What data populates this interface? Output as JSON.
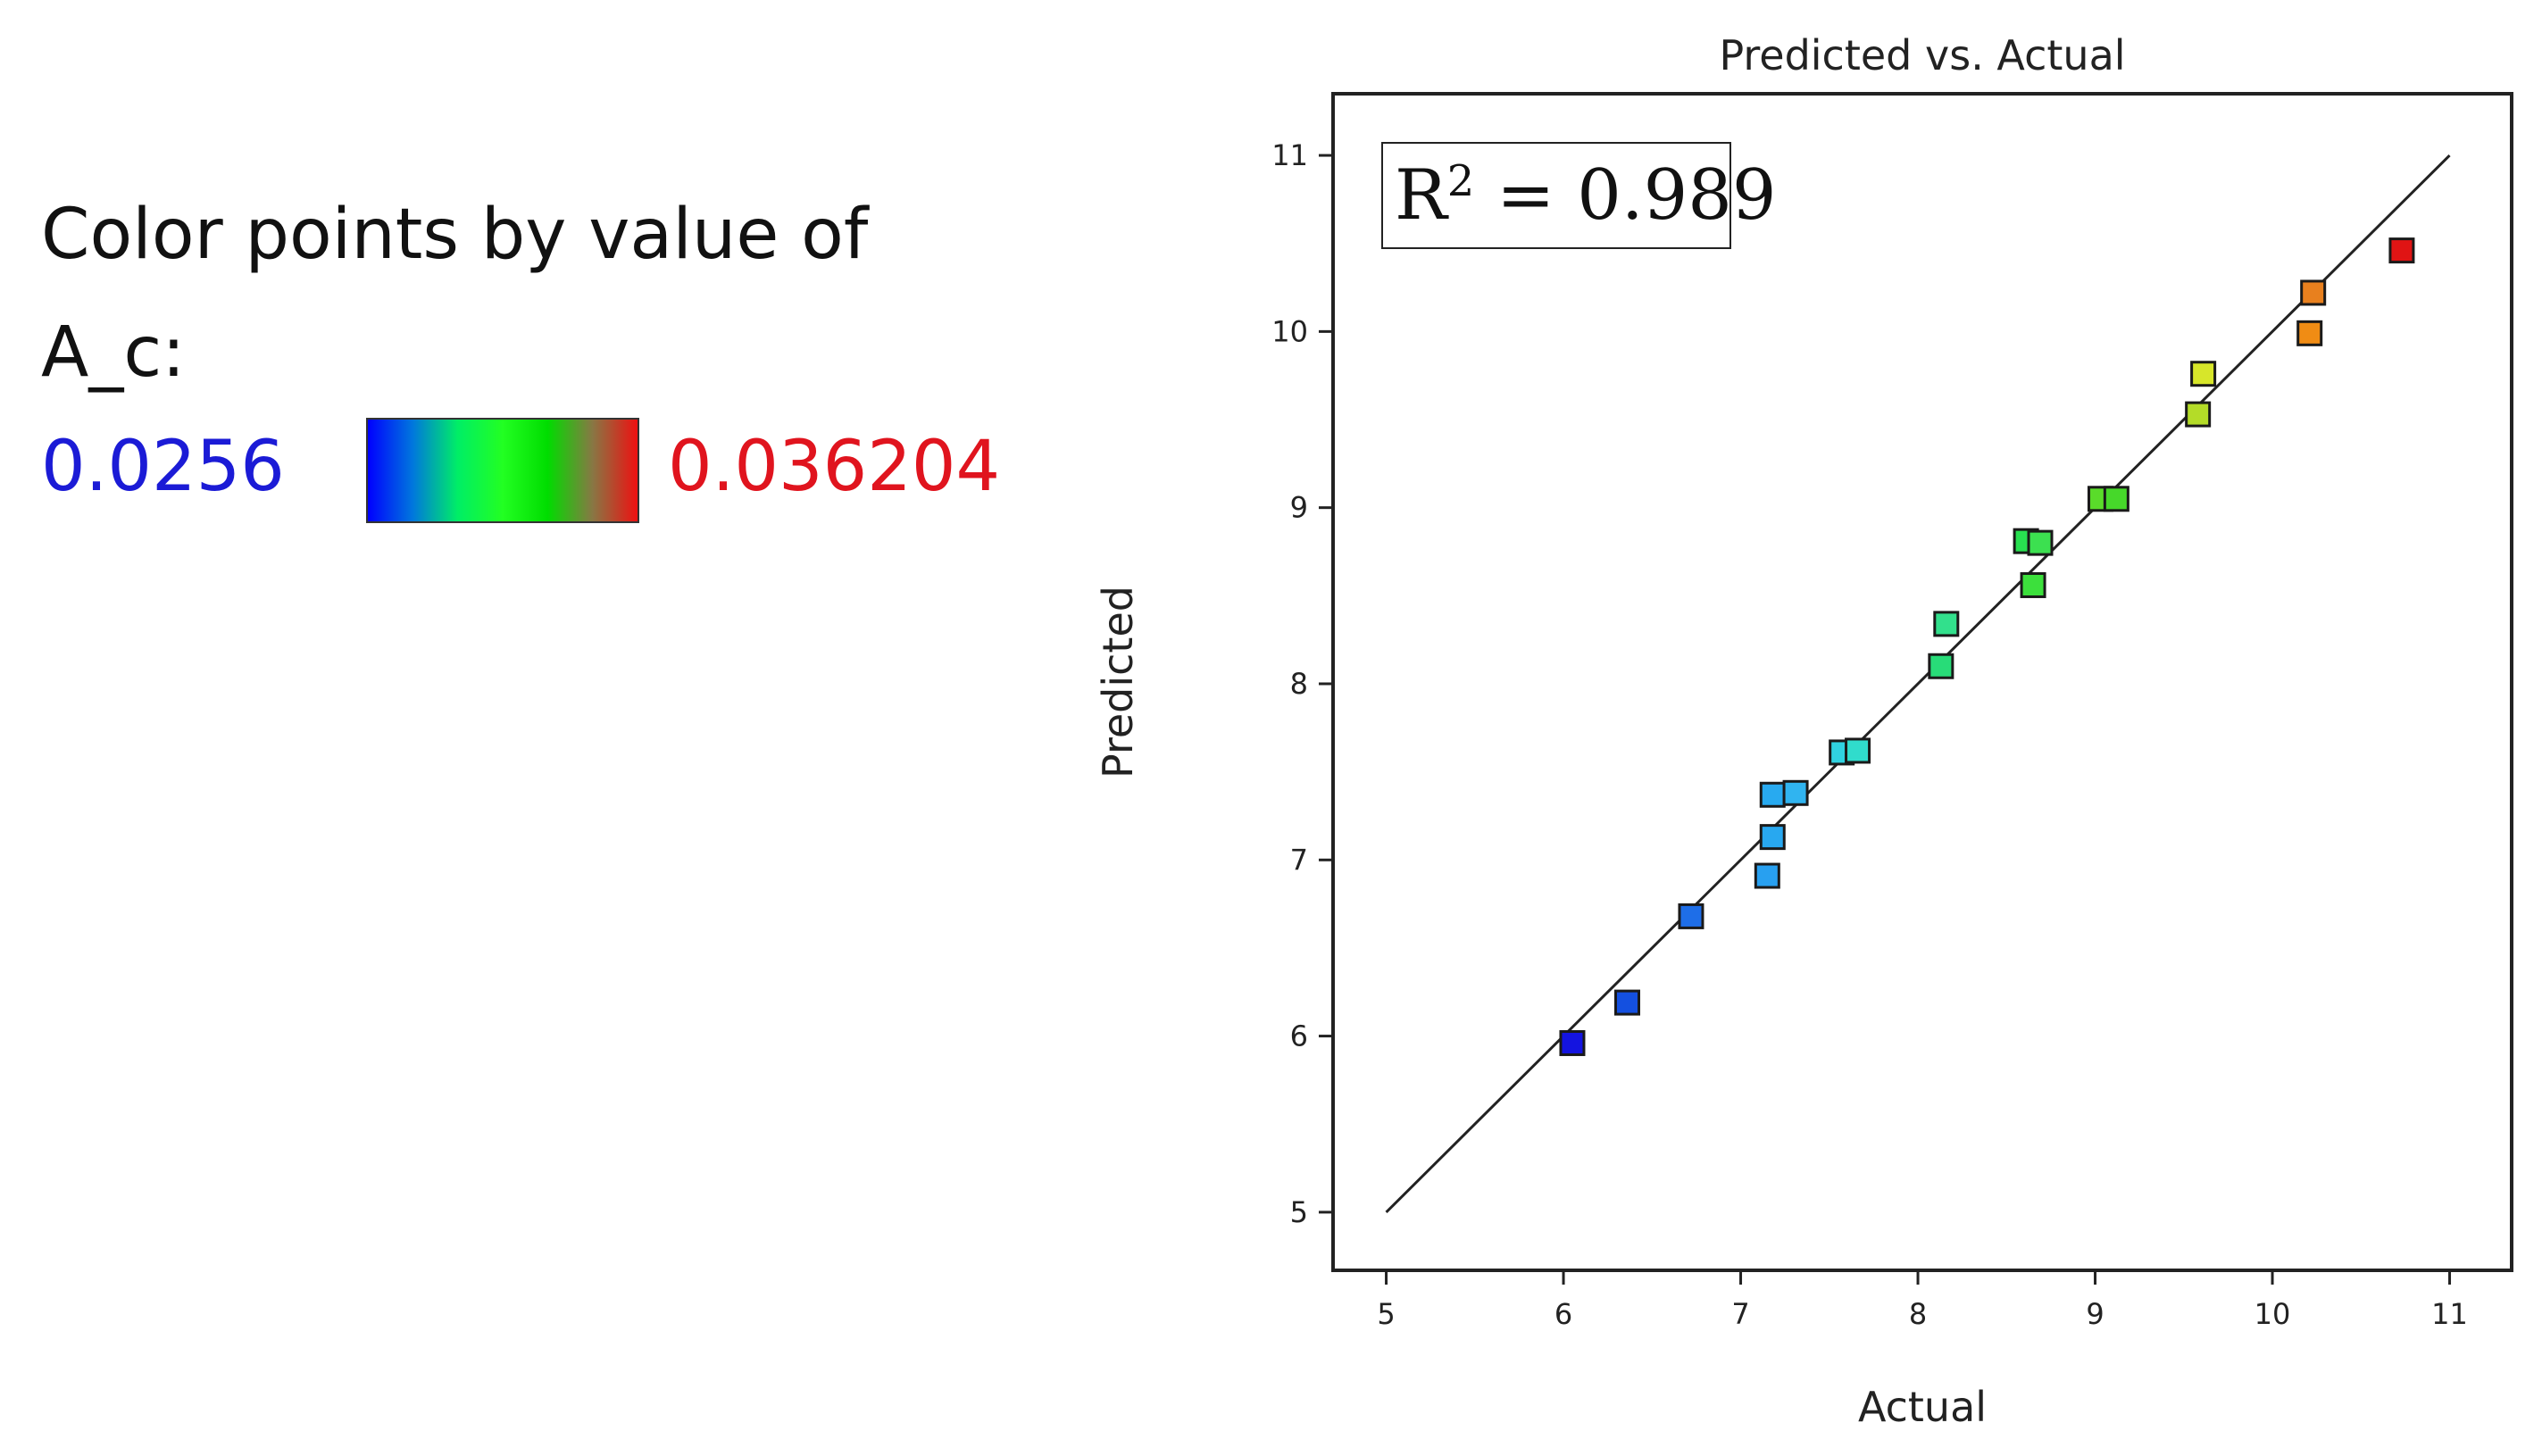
{
  "legend": {
    "line1": "Color points by value of",
    "line2": "A_c:",
    "min_label": "0.0256",
    "max_label": "0.036204",
    "min_color": "#1b1bd6",
    "max_color": "#e0141e",
    "colorbar_stops": [
      "#0000ff",
      "#0077dd",
      "#00ee66",
      "#22ff22",
      "#00dd00",
      "#887744",
      "#ee1111"
    ]
  },
  "chart_data": {
    "type": "scatter",
    "title": "Predicted vs. Actual",
    "xlabel": "Actual",
    "ylabel": "Predicted",
    "xlim": [
      4.7,
      11.35
    ],
    "ylim": [
      4.67,
      11.35
    ],
    "xticks": [
      5,
      6,
      7,
      8,
      9,
      10,
      11
    ],
    "yticks": [
      5,
      6,
      7,
      8,
      9,
      10,
      11
    ],
    "fit_line": {
      "x": [
        5,
        11
      ],
      "y": [
        5,
        11
      ]
    },
    "annotation": {
      "label": "R",
      "superscript": "2",
      "value_text": " = 0.989"
    },
    "color_scale": {
      "min": 0.0256,
      "max": 0.036204
    },
    "points": [
      {
        "x": 6.05,
        "y": 5.96,
        "color": "#1414e0"
      },
      {
        "x": 6.36,
        "y": 6.19,
        "color": "#1450e0"
      },
      {
        "x": 6.72,
        "y": 6.68,
        "color": "#1e6ee8"
      },
      {
        "x": 7.15,
        "y": 6.91,
        "color": "#28a0f0"
      },
      {
        "x": 7.18,
        "y": 7.13,
        "color": "#28a8f0"
      },
      {
        "x": 7.18,
        "y": 7.37,
        "color": "#28aaf0"
      },
      {
        "x": 7.31,
        "y": 7.38,
        "color": "#30b4f0"
      },
      {
        "x": 7.57,
        "y": 7.61,
        "color": "#30d2e0"
      },
      {
        "x": 7.66,
        "y": 7.62,
        "color": "#30dccc"
      },
      {
        "x": 8.13,
        "y": 8.1,
        "color": "#28dc78"
      },
      {
        "x": 8.16,
        "y": 8.34,
        "color": "#32e08c"
      },
      {
        "x": 8.61,
        "y": 8.81,
        "color": "#28e050"
      },
      {
        "x": 8.69,
        "y": 8.8,
        "color": "#3ce050"
      },
      {
        "x": 8.65,
        "y": 8.56,
        "color": "#3ce03c"
      },
      {
        "x": 9.03,
        "y": 9.05,
        "color": "#5adc2a"
      },
      {
        "x": 9.12,
        "y": 9.05,
        "color": "#46d82a"
      },
      {
        "x": 9.58,
        "y": 9.53,
        "color": "#b4dc28"
      },
      {
        "x": 9.61,
        "y": 9.76,
        "color": "#d7e62a"
      },
      {
        "x": 10.21,
        "y": 9.99,
        "color": "#f08c14"
      },
      {
        "x": 10.23,
        "y": 10.22,
        "color": "#e8801e"
      },
      {
        "x": 10.73,
        "y": 10.46,
        "color": "#e01414"
      }
    ]
  }
}
